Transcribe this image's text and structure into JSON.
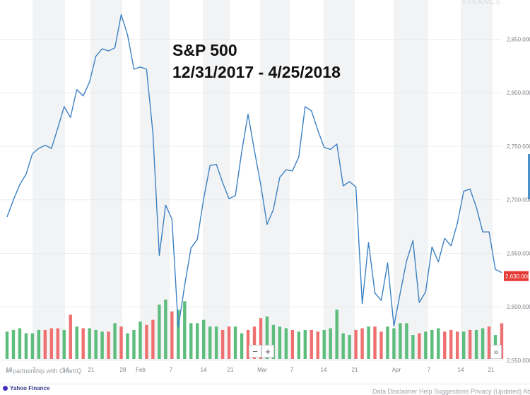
{
  "watermark": "FINANCE",
  "partnership": "In partnership with ChartIQ",
  "brand": "Yahoo Finance",
  "footer_links": "Data Disclaimer  Help  Suggestions  Privacy (Updated)  About Our Ads",
  "controls": {
    "zoom_out": "−",
    "zoom_in": "+",
    "scroll_right": "»"
  },
  "colors": {
    "price_line": "#3c82c4",
    "volume_up": "#5cbd7c",
    "volume_down": "#ee7070",
    "band": "#f2f3f4",
    "last_price_badge": "#e53935"
  },
  "chart_data": {
    "type": "line",
    "title": "S&P 500",
    "subtitle": "12/31/2017 - 4/25/2018",
    "xlabel": "",
    "ylabel": "",
    "ylim": [
      2550,
      2880
    ],
    "grid": true,
    "x_ticks": [
      "18",
      "7",
      "14",
      "21",
      "28",
      "Feb",
      "7",
      "14",
      "21",
      "Mar",
      "7",
      "14",
      "21",
      "Apr",
      "7",
      "14",
      "21"
    ],
    "y_ticks": [
      "2,850.0000",
      "2,800.0000",
      "2,750.0000",
      "2,700.0000",
      "2,650.0000",
      "2,600.0000",
      "2,550.0000"
    ],
    "last_price_label": "2,630.0000",
    "price": [
      2684,
      2700,
      2714,
      2724,
      2743,
      2748,
      2751,
      2748,
      2767,
      2787,
      2777,
      2803,
      2797,
      2810,
      2834,
      2841,
      2839,
      2842,
      2873,
      2854,
      2822,
      2824,
      2822,
      2762,
      2648,
      2695,
      2682,
      2581,
      2620,
      2655,
      2663,
      2701,
      2732,
      2733,
      2716,
      2701,
      2704,
      2745,
      2780,
      2746,
      2714,
      2677,
      2691,
      2721,
      2728,
      2727,
      2740,
      2787,
      2783,
      2765,
      2749,
      2747,
      2752,
      2713,
      2717,
      2712,
      2603,
      2660,
      2613,
      2606,
      2641,
      2582,
      2613,
      2643,
      2662,
      2604,
      2614,
      2656,
      2642,
      2664,
      2657,
      2678,
      2708,
      2710,
      2693,
      2670,
      2670,
      2635,
      2632
    ],
    "volume": {
      "values": [
        0.7,
        0.8,
        0.9,
        0.6,
        0.6,
        0.8,
        0.8,
        0.9,
        0.9,
        0.8,
        1.7,
        1.0,
        0.9,
        0.9,
        0.8,
        0.7,
        0.7,
        1.2,
        1.0,
        0.6,
        0.8,
        1.3,
        1.1,
        1.4,
        2.3,
        2.6,
        1.9,
        2.0,
        2.5,
        1.2,
        1.2,
        1.4,
        1.0,
        1.0,
        0.8,
        1.0,
        1.0,
        0.6,
        0.8,
        1.0,
        1.5,
        1.6,
        1.1,
        1.0,
        0.9,
        0.8,
        0.7,
        0.8,
        0.8,
        0.7,
        0.8,
        0.9,
        2.0,
        0.6,
        0.5,
        0.8,
        0.9,
        1.0,
        1.0,
        0.7,
        1.0,
        0.9,
        1.2,
        1.2,
        0.5,
        0.6,
        0.7,
        0.8,
        0.9,
        0.7,
        0.8,
        0.7,
        0.7,
        0.8,
        0.8,
        0.9,
        1.0,
        0.5,
        1.2
      ],
      "up": [
        1,
        1,
        1,
        1,
        1,
        1,
        0,
        0,
        0,
        1,
        0,
        1,
        0,
        1,
        1,
        1,
        0,
        1,
        0,
        1,
        1,
        1,
        0,
        0,
        1,
        1,
        0,
        1,
        1,
        1,
        1,
        1,
        1,
        1,
        0,
        0,
        1,
        1,
        0,
        0,
        0,
        1,
        1,
        1,
        1,
        0,
        1,
        1,
        0,
        0,
        1,
        1,
        1,
        1,
        1,
        0,
        0,
        1,
        0,
        0,
        1,
        1,
        1,
        1,
        1,
        0,
        1,
        1,
        1,
        0,
        0,
        0,
        1,
        0,
        1,
        1,
        0,
        1,
        0
      ]
    }
  }
}
